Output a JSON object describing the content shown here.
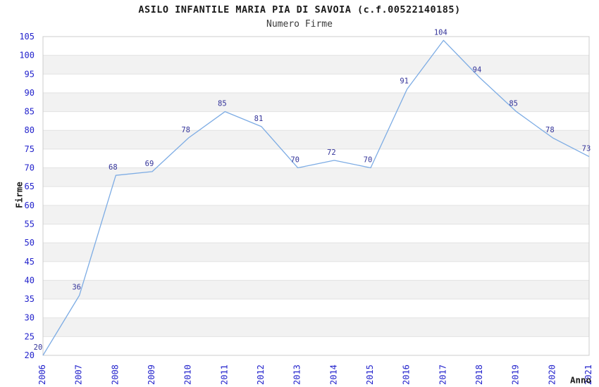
{
  "chart_data": {
    "type": "line",
    "title": "ASILO INFANTILE MARIA PIA DI SAVOIA (c.f.00522140185)",
    "subtitle": "Numero Firme",
    "xlabel": "Anno",
    "ylabel": "Firme",
    "categories": [
      "2006",
      "2007",
      "2008",
      "2009",
      "2010",
      "2011",
      "2012",
      "2013",
      "2014",
      "2015",
      "2016",
      "2017",
      "2018",
      "2019",
      "2020",
      "2021"
    ],
    "values": [
      20,
      36,
      68,
      69,
      78,
      85,
      81,
      70,
      72,
      70,
      91,
      104,
      94,
      85,
      78,
      73
    ],
    "ylim": [
      20,
      105
    ],
    "ytick_step": 5,
    "grid": "alternating horizontal bands",
    "legend": "none",
    "colors": {
      "line": "#7dace4",
      "axis_tick_label": "#2222cc",
      "point_label": "#333399",
      "band": "#f2f2f2",
      "gridline": "#e2e2e2",
      "border": "#cccccc"
    }
  }
}
